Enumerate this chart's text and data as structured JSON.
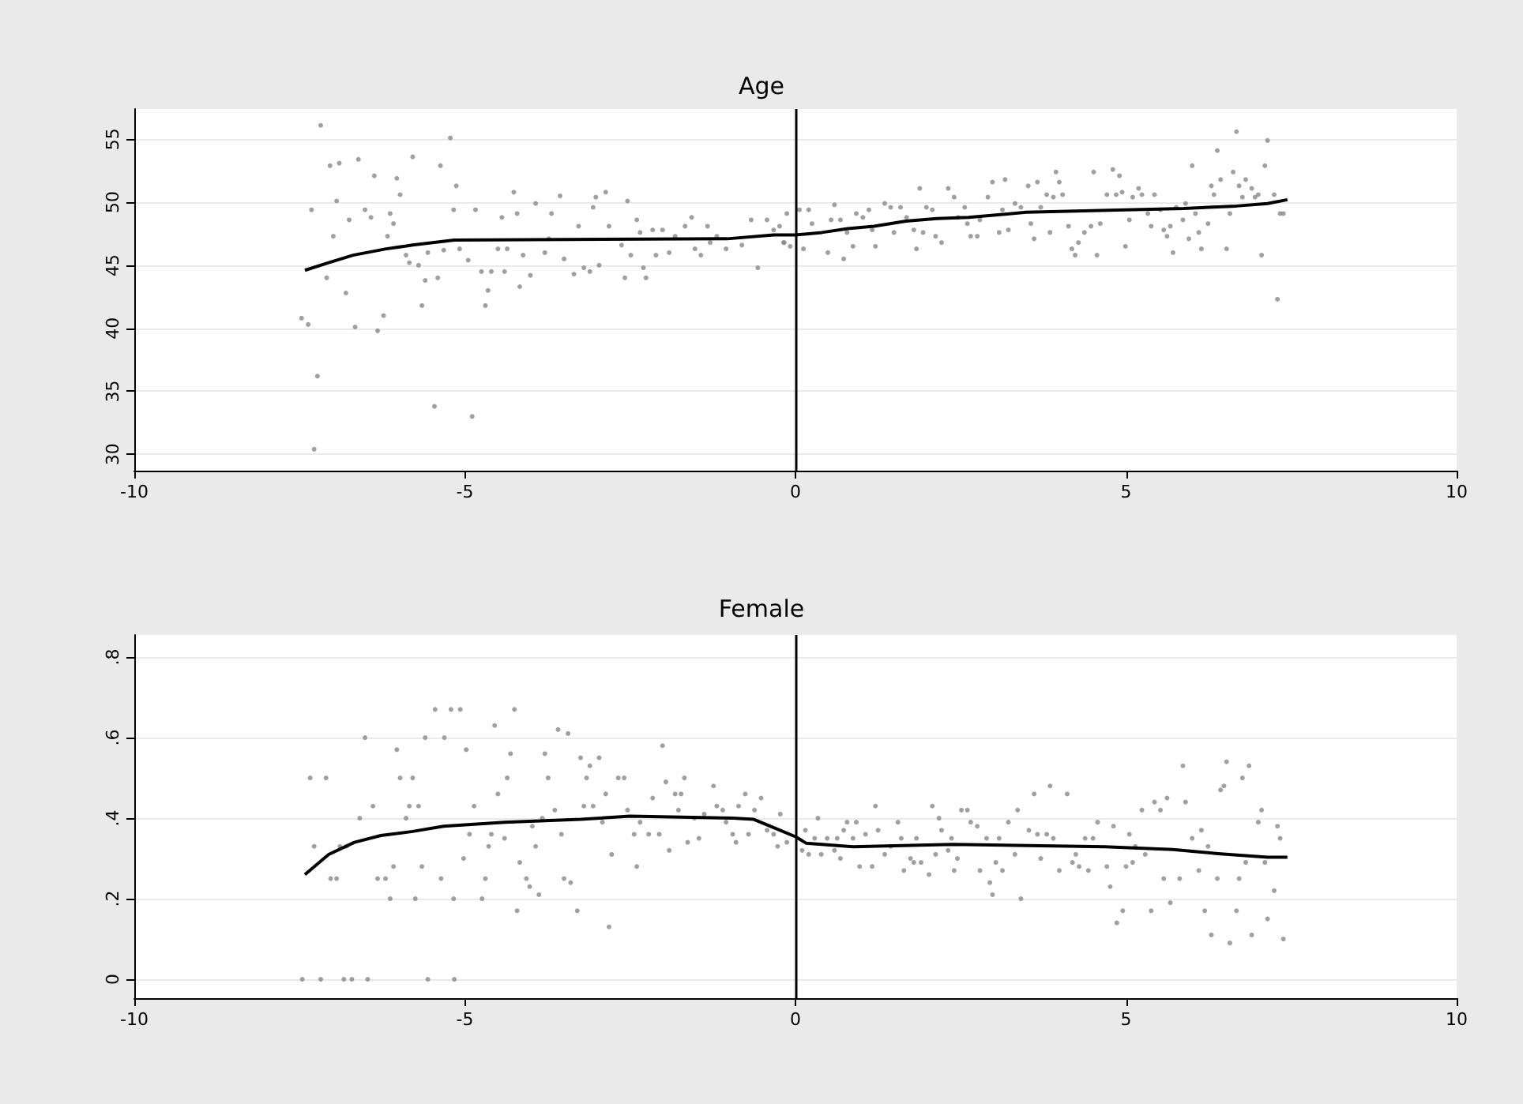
{
  "chart_data": [
    {
      "type": "scatter",
      "title": "Age",
      "xlim": [
        -10,
        10
      ],
      "xticks": [
        -10,
        -5,
        0,
        5,
        10
      ],
      "ylim": [
        28.7,
        57.4
      ],
      "yticks": [
        30,
        35,
        40,
        45,
        50,
        55
      ],
      "grid": "y",
      "ref_lines": [
        {
          "axis": "x",
          "value": 0,
          "color": "#000000"
        }
      ],
      "series": [
        {
          "color": "#888888",
          "x": [
            -7.18,
            -7.32,
            -7.04,
            -6.9,
            -6.61,
            -6.94,
            -6.75,
            -6.99,
            -7.09,
            -6.8,
            -6.66,
            -6.32,
            -6.23,
            -7.47,
            -7.37,
            -7.23,
            -7.28,
            -6.51,
            -6.42,
            -6.37,
            -6.17,
            -6.13,
            -6.03,
            -5.98,
            -6.08,
            -5.79,
            -5.89,
            -5.84,
            -5.7,
            -5.56,
            -5.6,
            -5.65,
            -5.41,
            -5.37,
            -5.22,
            -5.13,
            -5.17,
            -5.46,
            -4.89,
            -5.32,
            -5.08,
            -4.84,
            -4.95,
            -4.75,
            -4.65,
            -4.69,
            -4.6,
            -4.5,
            -4.44,
            -4.4,
            -4.36,
            -4.26,
            -4.21,
            -4.12,
            -4.17,
            -4.01,
            -3.93,
            -3.79,
            -3.69,
            -3.73,
            -3.56,
            -3.5,
            -3.35,
            -3.2,
            -3.11,
            -3.28,
            -3.06,
            -3.02,
            -2.97,
            -2.87,
            -2.82,
            -2.63,
            -2.58,
            -2.49,
            -2.54,
            -2.4,
            -2.35,
            -2.3,
            -2.26,
            -2.16,
            -2.11,
            -2.01,
            -1.91,
            -1.82,
            -1.67,
            -1.57,
            -1.52,
            -1.43,
            -1.33,
            -1.29,
            -1.19,
            -1.05,
            -0.81,
            -0.67,
            -0.57,
            -0.43,
            -0.33,
            -0.24,
            -0.13,
            -0.18,
            0.06,
            0.2,
            0.25,
            -0.17,
            -0.08,
            0.12,
            0.49,
            0.54,
            0.59,
            0.68,
            0.73,
            0.78,
            0.87,
            0.92,
            1.02,
            1.11,
            1.16,
            1.21,
            1.35,
            1.44,
            1.49,
            1.59,
            1.68,
            1.79,
            1.83,
            1.88,
            1.93,
            1.98,
            2.07,
            2.12,
            2.21,
            2.31,
            2.4,
            2.46,
            2.56,
            2.6,
            2.65,
            2.75,
            2.79,
            2.91,
            2.98,
            3.08,
            3.13,
            3.17,
            3.22,
            3.32,
            3.41,
            3.52,
            3.56,
            3.61,
            3.66,
            3.71,
            3.8,
            3.85,
            3.9,
            3.94,
            3.99,
            4.04,
            4.13,
            4.18,
            4.23,
            4.28,
            4.37,
            4.47,
            4.51,
            4.56,
            4.61,
            4.71,
            4.8,
            4.85,
            4.9,
            4.94,
            4.99,
            5.05,
            5.1,
            5.19,
            5.24,
            5.33,
            5.38,
            5.43,
            5.52,
            5.57,
            5.62,
            5.67,
            5.71,
            5.76,
            5.86,
            5.9,
            5.95,
            6.0,
            6.05,
            6.1,
            6.14,
            6.24,
            6.29,
            6.33,
            6.38,
            6.43,
            6.52,
            6.57,
            6.62,
            6.67,
            6.71,
            6.76,
            6.81,
            6.9,
            6.95,
            7.0,
            7.05,
            7.1,
            7.14,
            7.24,
            7.29,
            7.33,
            7.38
          ],
          "values": [
            56.1,
            49.4,
            52.9,
            53.1,
            53.4,
            50.1,
            48.6,
            47.3,
            44.0,
            42.8,
            40.1,
            39.8,
            41.0,
            40.8,
            40.3,
            36.2,
            30.4,
            49.4,
            48.8,
            52.1,
            47.3,
            49.1,
            51.9,
            50.6,
            48.3,
            53.6,
            45.8,
            45.2,
            45.0,
            46.0,
            43.8,
            41.8,
            44.0,
            52.9,
            55.1,
            51.3,
            49.4,
            33.8,
            33.0,
            46.2,
            46.3,
            49.4,
            45.4,
            44.5,
            43.0,
            41.8,
            44.5,
            46.3,
            48.8,
            44.5,
            46.3,
            50.8,
            49.1,
            45.8,
            43.3,
            44.2,
            49.9,
            46.0,
            49.1,
            47.1,
            50.5,
            45.5,
            44.3,
            44.8,
            44.5,
            48.1,
            49.6,
            50.4,
            45.0,
            50.8,
            48.1,
            46.6,
            44.0,
            45.8,
            50.1,
            48.6,
            47.6,
            44.8,
            44.0,
            47.8,
            45.8,
            47.8,
            46.0,
            47.3,
            48.1,
            48.8,
            46.3,
            45.8,
            48.1,
            46.8,
            47.3,
            46.3,
            46.6,
            48.6,
            44.8,
            48.6,
            47.8,
            48.1,
            49.1,
            46.8,
            49.4,
            49.4,
            48.3,
            46.8,
            46.5,
            46.3,
            46.0,
            48.6,
            49.8,
            48.6,
            45.5,
            47.6,
            46.5,
            49.1,
            48.8,
            49.4,
            47.8,
            46.5,
            49.9,
            49.6,
            47.6,
            49.6,
            48.8,
            47.8,
            46.3,
            51.1,
            47.6,
            49.6,
            49.4,
            47.3,
            46.8,
            51.1,
            50.4,
            48.8,
            49.6,
            48.3,
            47.3,
            47.3,
            48.6,
            50.4,
            51.6,
            47.6,
            49.4,
            51.8,
            47.8,
            49.9,
            49.6,
            51.3,
            48.3,
            47.1,
            51.6,
            49.6,
            50.6,
            47.6,
            50.4,
            52.4,
            51.6,
            50.6,
            48.1,
            46.3,
            45.8,
            46.8,
            47.6,
            48.1,
            52.4,
            45.8,
            48.3,
            50.6,
            52.6,
            50.6,
            52.1,
            50.8,
            46.5,
            48.6,
            50.4,
            51.1,
            50.6,
            49.1,
            48.1,
            50.6,
            49.4,
            47.8,
            47.3,
            48.1,
            46.0,
            49.6,
            48.6,
            49.9,
            47.1,
            52.9,
            49.1,
            47.6,
            46.3,
            48.3,
            51.3,
            50.6,
            54.1,
            51.8,
            46.3,
            49.1,
            52.4,
            55.6,
            51.3,
            50.4,
            51.8,
            51.1,
            50.4,
            50.6,
            45.8,
            52.9,
            54.9,
            50.6,
            42.3,
            49.1,
            49.1
          ]
        },
        {
          "type": "line",
          "color": "#000000",
          "x": [
            -7.42,
            -7.06,
            -6.69,
            -6.19,
            -5.79,
            -5.16,
            -1.03,
            -0.33,
            0.0,
            0.4,
            0.79,
            1.19,
            1.67,
            2.14,
            2.62,
            3.49,
            5.87,
            6.67,
            7.14,
            7.44
          ],
          "values": [
            44.6,
            45.2,
            45.8,
            46.3,
            46.6,
            47.0,
            47.1,
            47.4,
            47.4,
            47.6,
            47.9,
            48.1,
            48.5,
            48.7,
            48.8,
            49.2,
            49.5,
            49.7,
            49.9,
            50.2
          ]
        }
      ]
    },
    {
      "type": "scatter",
      "title": "Female",
      "xlim": [
        -10,
        10
      ],
      "xticks": [
        -10,
        -5,
        0,
        5,
        10
      ],
      "ylim": [
        -0.047,
        0.855
      ],
      "yticks": [
        {
          "value": 0,
          "label": "0"
        },
        {
          "value": 0.2,
          "label": ".2"
        },
        {
          "value": 0.4,
          "label": ".4"
        },
        {
          "value": 0.6,
          "label": ".6"
        },
        {
          "value": 0.8,
          "label": ".8"
        }
      ],
      "grid": "y",
      "ref_lines": [
        {
          "axis": "x",
          "value": 0,
          "color": "#000000"
        }
      ],
      "series": [
        {
          "color": "#888888",
          "x": [
            -7.46,
            -7.18,
            -6.83,
            -6.71,
            -6.47,
            -5.56,
            -5.16,
            -7.34,
            -7.1,
            -7.28,
            -7.03,
            -6.94,
            -6.89,
            -6.79,
            -6.59,
            -6.51,
            -6.39,
            -6.32,
            -6.2,
            -6.13,
            -6.08,
            -6.03,
            -5.98,
            -5.89,
            -5.84,
            -5.79,
            -5.75,
            -5.7,
            -5.65,
            -5.6,
            -5.45,
            -5.36,
            -5.31,
            -5.21,
            -5.17,
            -5.07,
            -5.02,
            -4.98,
            -4.93,
            -4.86,
            -4.74,
            -4.69,
            -4.64,
            -4.6,
            -4.55,
            -4.5,
            -4.4,
            -4.36,
            -4.31,
            -4.25,
            -4.21,
            -4.17,
            -4.07,
            -4.02,
            -3.98,
            -3.93,
            -3.88,
            -3.83,
            -3.79,
            -3.74,
            -3.64,
            -3.59,
            -3.54,
            -3.5,
            -3.44,
            -3.4,
            -3.3,
            -3.25,
            -3.2,
            -3.16,
            -3.11,
            -3.06,
            -2.97,
            -2.92,
            -2.87,
            -2.82,
            -2.78,
            -2.68,
            -2.59,
            -2.54,
            -2.44,
            -2.4,
            -2.35,
            -2.22,
            -2.16,
            -2.06,
            -2.01,
            -1.96,
            -1.91,
            -1.82,
            -1.77,
            -1.73,
            -1.68,
            -1.63,
            -1.53,
            -1.46,
            -1.38,
            -1.24,
            -1.19,
            -1.1,
            -1.05,
            -0.95,
            -0.9,
            -0.86,
            -0.76,
            -0.71,
            -0.62,
            -0.52,
            -0.43,
            -0.33,
            -0.27,
            -0.23,
            -0.13,
            0.1,
            0.15,
            0.2,
            0.29,
            0.34,
            0.39,
            0.48,
            0.59,
            0.63,
            0.68,
            0.73,
            0.78,
            0.87,
            0.92,
            0.97,
            1.06,
            1.16,
            1.21,
            1.25,
            1.35,
            1.44,
            1.55,
            1.6,
            1.64,
            1.74,
            1.79,
            1.83,
            1.9,
            2.02,
            2.07,
            2.12,
            2.17,
            2.21,
            2.31,
            2.36,
            2.4,
            2.45,
            2.51,
            2.6,
            2.65,
            2.75,
            2.79,
            2.89,
            2.94,
            2.98,
            3.03,
            3.08,
            3.13,
            3.22,
            3.32,
            3.36,
            3.41,
            3.53,
            3.61,
            3.66,
            3.71,
            3.8,
            3.85,
            3.9,
            3.99,
            4.11,
            4.19,
            4.24,
            4.29,
            4.38,
            4.43,
            4.5,
            4.57,
            4.71,
            4.76,
            4.81,
            4.86,
            4.95,
            5.0,
            5.05,
            5.1,
            5.14,
            5.24,
            5.29,
            5.38,
            5.43,
            5.52,
            5.57,
            5.62,
            5.67,
            5.81,
            5.86,
            5.9,
            6.0,
            6.1,
            6.14,
            6.19,
            6.24,
            6.29,
            6.38,
            6.43,
            6.48,
            6.52,
            6.57,
            6.67,
            6.71,
            6.76,
            6.81,
            6.86,
            6.9,
            7.0,
            7.05,
            7.1,
            7.14,
            7.24,
            7.29,
            7.33,
            7.38
          ],
          "values": [
            0,
            0,
            0,
            0,
            0,
            0,
            0,
            0.5,
            0.5,
            0.33,
            0.25,
            0.25,
            0.33,
            0.33,
            0.4,
            0.6,
            0.43,
            0.25,
            0.25,
            0.2,
            0.28,
            0.57,
            0.5,
            0.4,
            0.43,
            0.5,
            0.2,
            0.43,
            0.28,
            0.6,
            0.67,
            0.25,
            0.6,
            0.67,
            0.2,
            0.67,
            0.3,
            0.57,
            0.36,
            0.43,
            0.2,
            0.25,
            0.33,
            0.36,
            0.63,
            0.46,
            0.35,
            0.5,
            0.56,
            0.67,
            0.17,
            0.29,
            0.25,
            0.23,
            0.38,
            0.33,
            0.21,
            0.4,
            0.56,
            0.5,
            0.42,
            0.62,
            0.36,
            0.25,
            0.61,
            0.24,
            0.17,
            0.55,
            0.43,
            0.5,
            0.53,
            0.43,
            0.55,
            0.39,
            0.46,
            0.13,
            0.31,
            0.5,
            0.5,
            0.42,
            0.36,
            0.28,
            0.39,
            0.36,
            0.45,
            0.36,
            0.58,
            0.49,
            0.32,
            0.46,
            0.42,
            0.46,
            0.5,
            0.34,
            0.4,
            0.35,
            0.41,
            0.48,
            0.43,
            0.42,
            0.39,
            0.36,
            0.34,
            0.43,
            0.46,
            0.36,
            0.42,
            0.45,
            0.37,
            0.36,
            0.33,
            0.41,
            0.34,
            0.32,
            0.37,
            0.31,
            0.35,
            0.4,
            0.31,
            0.35,
            0.32,
            0.35,
            0.3,
            0.37,
            0.39,
            0.35,
            0.39,
            0.28,
            0.36,
            0.28,
            0.43,
            0.37,
            0.31,
            0.33,
            0.39,
            0.35,
            0.27,
            0.3,
            0.29,
            0.35,
            0.29,
            0.26,
            0.43,
            0.31,
            0.4,
            0.37,
            0.32,
            0.35,
            0.27,
            0.3,
            0.42,
            0.42,
            0.39,
            0.38,
            0.27,
            0.35,
            0.24,
            0.21,
            0.29,
            0.35,
            0.27,
            0.39,
            0.31,
            0.42,
            0.2,
            0.37,
            0.46,
            0.36,
            0.3,
            0.36,
            0.48,
            0.35,
            0.27,
            0.46,
            0.29,
            0.31,
            0.28,
            0.35,
            0.27,
            0.35,
            0.39,
            0.28,
            0.23,
            0.38,
            0.14,
            0.17,
            0.28,
            0.36,
            0.29,
            0.33,
            0.42,
            0.31,
            0.17,
            0.44,
            0.42,
            0.25,
            0.45,
            0.19,
            0.25,
            0.53,
            0.44,
            0.35,
            0.27,
            0.37,
            0.17,
            0.33,
            0.11,
            0.25,
            0.47,
            0.48,
            0.54,
            0.09,
            0.17,
            0.25,
            0.5,
            0.29,
            0.53,
            0.11,
            0.39,
            0.42,
            0.29,
            0.15,
            0.22,
            0.38,
            0.35,
            0.1
          ]
        },
        {
          "type": "line",
          "color": "#000000",
          "x": [
            -7.42,
            -7.06,
            -6.67,
            -6.27,
            -5.79,
            -5.32,
            -4.4,
            -3.25,
            -2.5,
            -0.95,
            -0.63,
            -0.29,
            0.0,
            0.16,
            0.87,
            2.38,
            4.68,
            5.71,
            6.39,
            7.14,
            7.44
          ],
          "values": [
            0.26,
            0.31,
            0.34,
            0.357,
            0.367,
            0.38,
            0.39,
            0.397,
            0.405,
            0.4,
            0.397,
            0.374,
            0.354,
            0.338,
            0.329,
            0.335,
            0.329,
            0.322,
            0.312,
            0.303,
            0.303
          ]
        }
      ]
    }
  ]
}
